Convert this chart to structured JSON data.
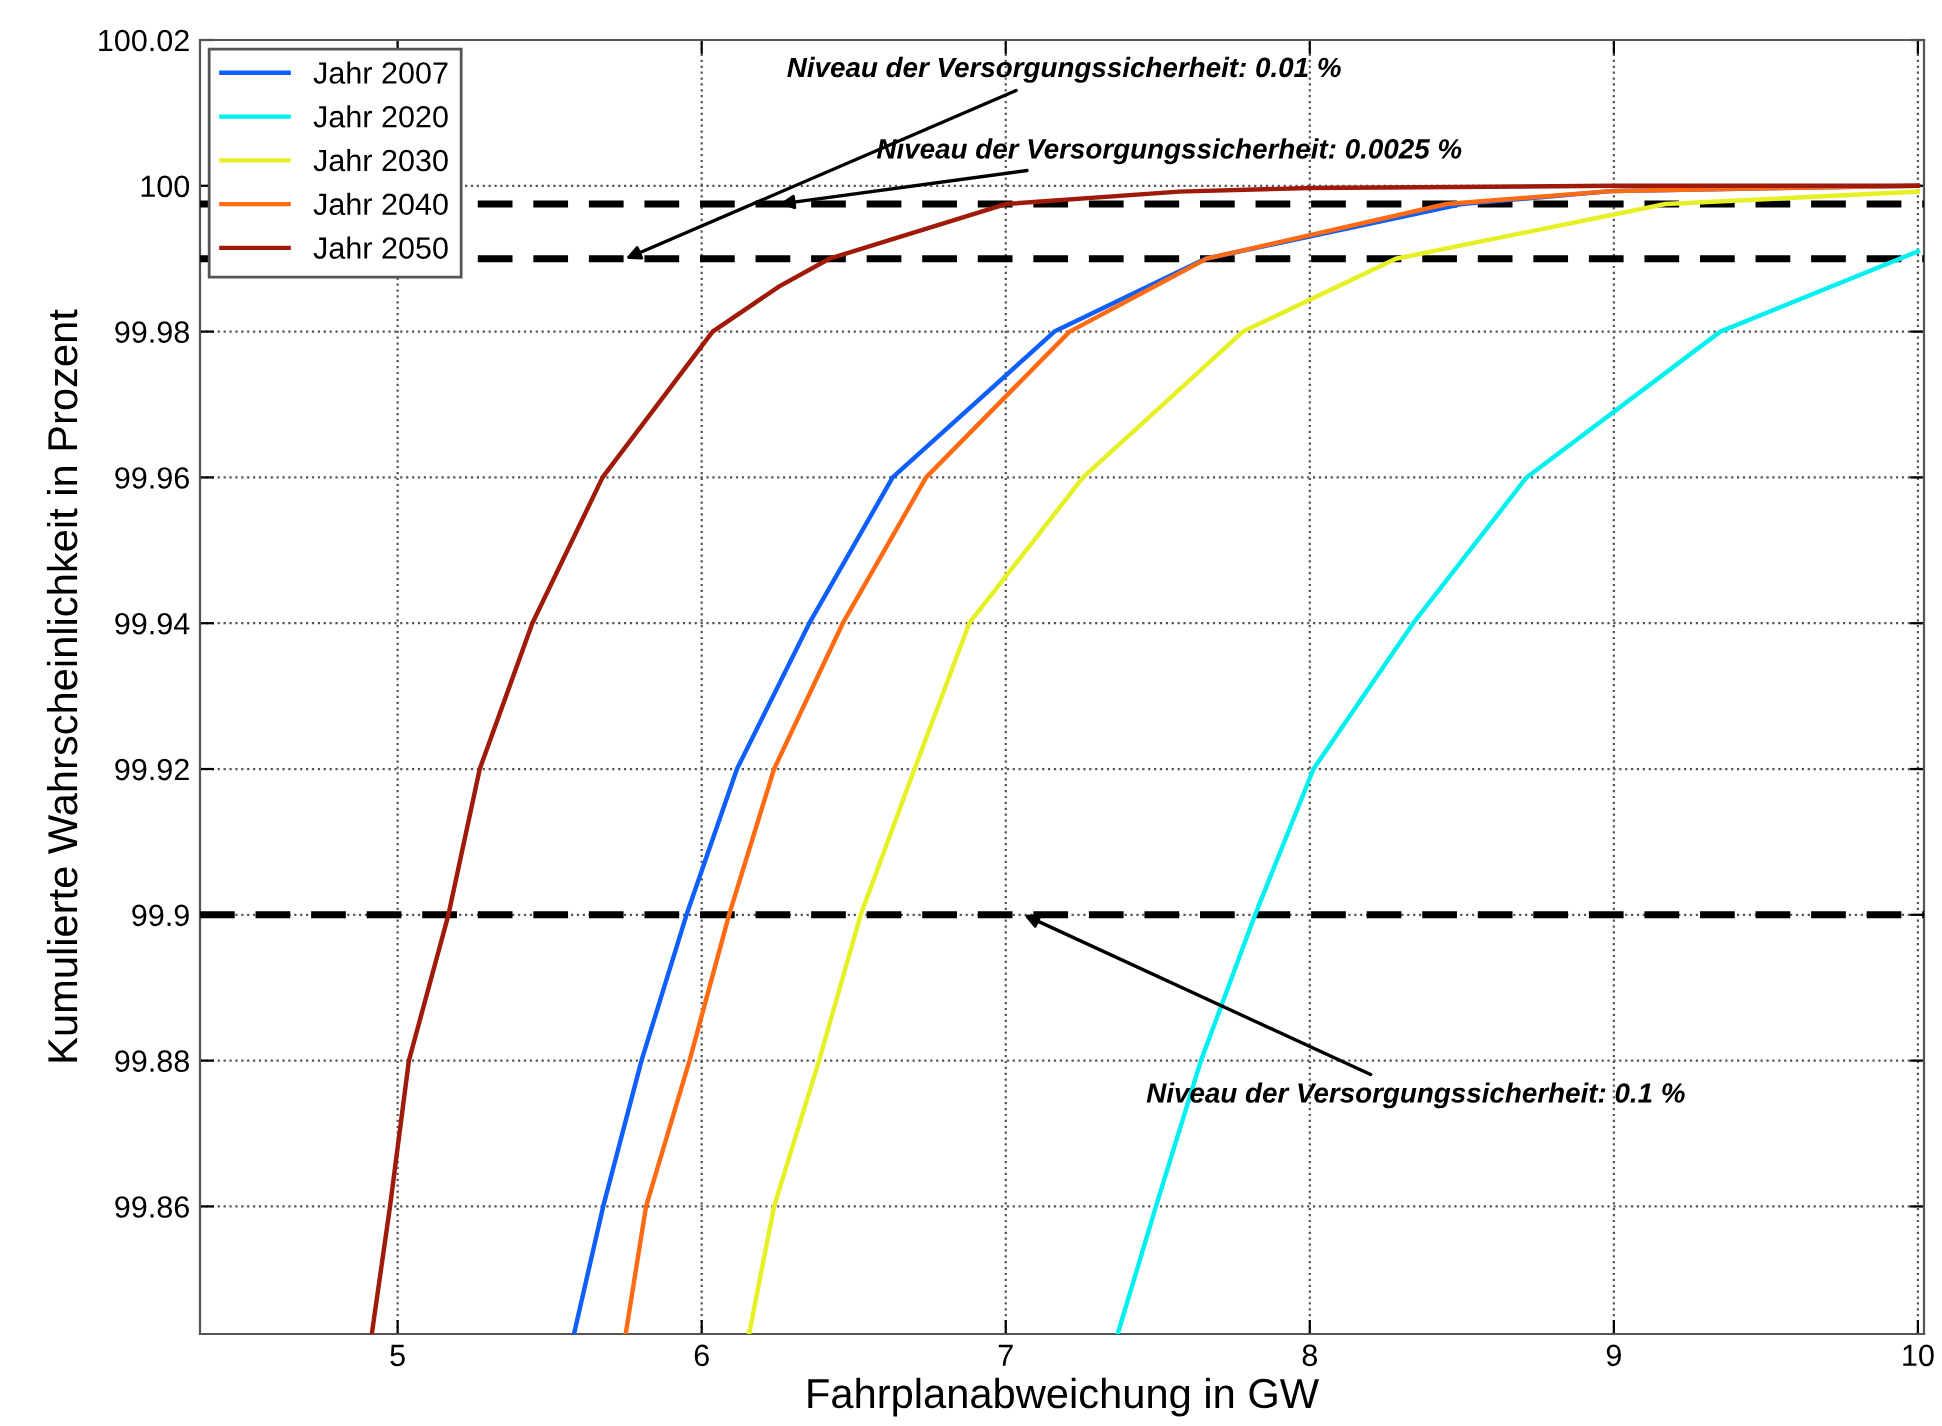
{
  "chart_data": {
    "type": "line",
    "xlabel": "Fahrplanabweichung in GW",
    "ylabel": "Kumulierte Wahrscheinlichkeit in Prozent",
    "xlim": [
      4.35,
      10.02
    ],
    "ylim": [
      99.8425,
      100.02
    ],
    "xticks": [
      5,
      6,
      7,
      8,
      9,
      10
    ],
    "yticks": [
      99.86,
      99.88,
      99.9,
      99.92,
      99.94,
      99.96,
      99.98,
      100,
      100.02
    ],
    "grid": true,
    "legend": "top left",
    "marker": "none",
    "line_style": "solid",
    "series": [
      {
        "name": "Jahr 2007",
        "color": "#0f5fff",
        "x": [
          5.58,
          5.676,
          5.802,
          5.95,
          6.116,
          6.354,
          6.628,
          7.16,
          7.657,
          8.5,
          9.0,
          10.0
        ],
        "values": [
          99.8425,
          99.86,
          99.88,
          99.9,
          99.92,
          99.94,
          99.96,
          99.98,
          99.99,
          99.9975,
          99.9993,
          100.0
        ]
      },
      {
        "name": "Jahr 2020",
        "color": "#00f0f0",
        "x": [
          7.368,
          7.494,
          7.642,
          7.82,
          8.012,
          8.34,
          8.713,
          9.35,
          10.0
        ],
        "values": [
          99.8425,
          99.86,
          99.88,
          99.9,
          99.92,
          99.94,
          99.96,
          99.98,
          99.991
        ]
      },
      {
        "name": "Jahr 2030",
        "color": "#e5f025",
        "x": [
          6.156,
          6.238,
          6.386,
          6.523,
          6.7,
          6.88,
          7.254,
          7.78,
          8.283,
          9.17,
          10.0
        ],
        "values": [
          99.8425,
          99.86,
          99.88,
          99.9,
          99.92,
          99.94,
          99.96,
          99.98,
          99.99,
          99.9975,
          99.9992
        ]
      },
      {
        "name": "Jahr 2040",
        "color": "#ff6a13",
        "x": [
          5.75,
          5.817,
          5.96,
          6.09,
          6.238,
          6.464,
          6.738,
          7.21,
          7.66,
          8.45,
          9.0,
          10.0
        ],
        "values": [
          99.8425,
          99.86,
          99.88,
          99.9,
          99.92,
          99.94,
          99.96,
          99.98,
          99.99,
          99.9975,
          99.9993,
          100.0
        ]
      },
      {
        "name": "Jahr 2050",
        "color": "#a01a0a",
        "x": [
          4.915,
          4.975,
          5.037,
          5.167,
          5.27,
          5.443,
          5.674,
          6.036,
          6.255,
          6.42,
          7.0,
          7.57,
          8.0,
          9.0,
          10.0
        ],
        "values": [
          99.8425,
          99.86,
          99.88,
          99.9,
          99.92,
          99.94,
          99.96,
          99.98,
          99.9862,
          99.99,
          99.9975,
          99.9992,
          99.9997,
          100.0,
          100.0
        ]
      }
    ],
    "ref_lines": [
      {
        "axis": "y",
        "value": 99.9975,
        "color": "#000000",
        "line_style": "dashed"
      },
      {
        "axis": "y",
        "value": 99.99,
        "color": "#000000",
        "line_style": "dashed"
      },
      {
        "axis": "y",
        "value": 99.9,
        "color": "#000000",
        "line_style": "dashed"
      }
    ],
    "annotations": [
      {
        "text": "Niveau der Versorgungssicherheit: 0.01 %",
        "x": 5.75,
        "y": 99.99
      },
      {
        "text": "Niveau der Versorgungssicherheit: 0.0025 %",
        "x": 6.255,
        "y": 99.9975
      },
      {
        "text": "Niveau der Versorgungssicherheit: 0.1 %",
        "x": 7.06,
        "y": 99.9
      }
    ]
  }
}
